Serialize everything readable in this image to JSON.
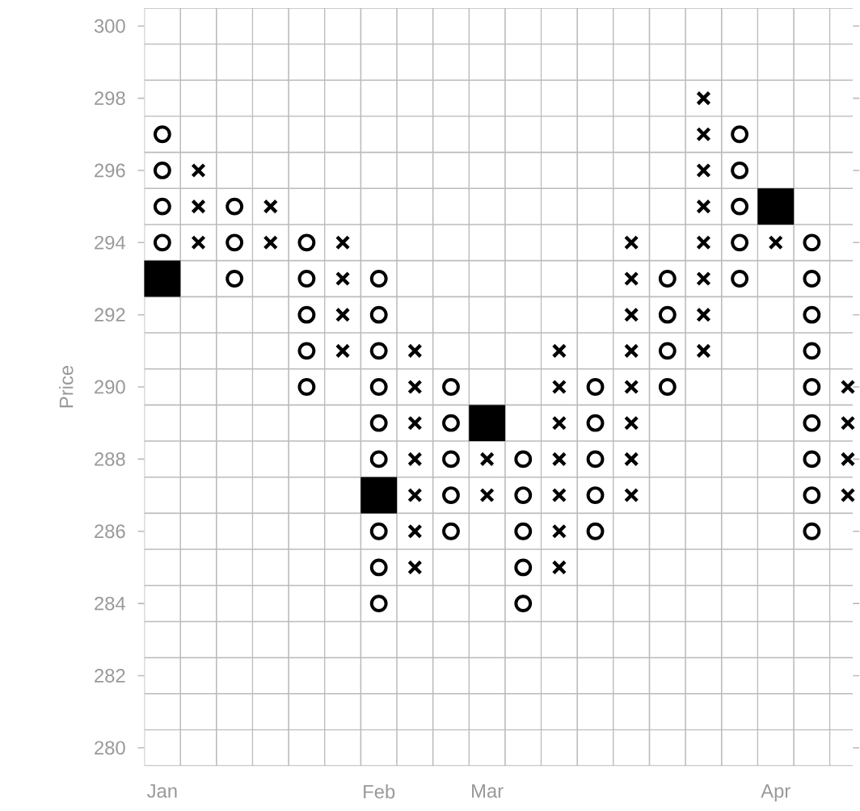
{
  "chart_data": {
    "type": "scatter",
    "ylabel": "Price",
    "ylim": [
      279.5,
      300.5
    ],
    "categories": [
      "Jan",
      null,
      null,
      null,
      null,
      null,
      "Feb",
      null,
      null,
      "Mar",
      null,
      null,
      null,
      null,
      null,
      null,
      null,
      "Apr",
      null,
      null
    ],
    "yticks": [
      280,
      282,
      284,
      286,
      288,
      290,
      292,
      294,
      296,
      298,
      300
    ],
    "grid": true,
    "series": [
      {
        "marker": "cross",
        "color": "#000000",
        "values": [
          null,
          294,
          null,
          294,
          null,
          291,
          null,
          285,
          null,
          287,
          null,
          285,
          null,
          287,
          null,
          291,
          null,
          294,
          null,
          287
        ]
      },
      {
        "marker": "cross",
        "color": "#000000",
        "values": [
          null,
          295,
          null,
          295,
          null,
          292,
          null,
          286,
          null,
          288,
          null,
          286,
          null,
          288,
          null,
          292,
          null,
          null,
          null,
          288
        ]
      },
      {
        "marker": "cross",
        "color": "#000000",
        "values": [
          null,
          296,
          null,
          null,
          null,
          293,
          null,
          287,
          null,
          null,
          null,
          287,
          null,
          289,
          null,
          293,
          null,
          null,
          null,
          289
        ]
      },
      {
        "marker": "cross",
        "color": "#000000",
        "values": [
          null,
          null,
          null,
          null,
          null,
          294,
          null,
          288,
          null,
          null,
          null,
          288,
          null,
          290,
          null,
          294,
          null,
          null,
          null,
          290
        ]
      },
      {
        "marker": "cross",
        "color": "#000000",
        "values": [
          null,
          null,
          null,
          null,
          null,
          null,
          null,
          289,
          null,
          null,
          null,
          289,
          null,
          291,
          null,
          295,
          null,
          null,
          null,
          null
        ]
      },
      {
        "marker": "cross",
        "color": "#000000",
        "values": [
          null,
          null,
          null,
          null,
          null,
          null,
          null,
          290,
          null,
          null,
          null,
          290,
          null,
          292,
          null,
          296,
          null,
          null,
          null,
          null
        ]
      },
      {
        "marker": "cross",
        "color": "#000000",
        "values": [
          null,
          null,
          null,
          null,
          null,
          null,
          null,
          291,
          null,
          null,
          null,
          291,
          null,
          293,
          null,
          297,
          null,
          null,
          null,
          null
        ]
      },
      {
        "marker": "cross",
        "color": "#000000",
        "values": [
          null,
          null,
          null,
          null,
          null,
          null,
          null,
          null,
          null,
          null,
          null,
          null,
          null,
          294,
          null,
          298,
          null,
          null,
          null,
          null
        ]
      },
      {
        "marker": "circle",
        "color": "#000000",
        "values": [
          294,
          null,
          293,
          null,
          290,
          null,
          284,
          null,
          286,
          null,
          284,
          null,
          286,
          null,
          290,
          null,
          293,
          null,
          286,
          null
        ]
      },
      {
        "marker": "circle",
        "color": "#000000",
        "values": [
          295,
          null,
          294,
          null,
          291,
          null,
          285,
          null,
          287,
          null,
          285,
          null,
          287,
          null,
          291,
          null,
          294,
          null,
          287,
          null
        ]
      },
      {
        "marker": "circle",
        "color": "#000000",
        "values": [
          296,
          null,
          295,
          null,
          292,
          null,
          286,
          null,
          288,
          null,
          286,
          null,
          288,
          null,
          292,
          null,
          295,
          null,
          288,
          null
        ]
      },
      {
        "marker": "circle",
        "color": "#000000",
        "values": [
          297,
          null,
          null,
          null,
          293,
          null,
          288,
          null,
          289,
          null,
          287,
          null,
          289,
          null,
          293,
          null,
          296,
          null,
          289,
          null
        ]
      },
      {
        "marker": "circle",
        "color": "#000000",
        "values": [
          null,
          null,
          null,
          null,
          294,
          null,
          289,
          null,
          290,
          null,
          288,
          null,
          290,
          null,
          null,
          null,
          297,
          null,
          290,
          null
        ]
      },
      {
        "marker": "circle",
        "color": "#000000",
        "values": [
          null,
          null,
          null,
          null,
          null,
          null,
          290,
          null,
          null,
          null,
          null,
          null,
          null,
          null,
          null,
          null,
          null,
          null,
          291,
          null
        ]
      },
      {
        "marker": "circle",
        "color": "#000000",
        "values": [
          null,
          null,
          null,
          null,
          null,
          null,
          291,
          null,
          null,
          null,
          null,
          null,
          null,
          null,
          null,
          null,
          null,
          null,
          292,
          null
        ]
      },
      {
        "marker": "circle",
        "color": "#000000",
        "values": [
          null,
          null,
          null,
          null,
          null,
          null,
          292,
          null,
          null,
          null,
          null,
          null,
          null,
          null,
          null,
          null,
          null,
          null,
          293,
          null
        ]
      },
      {
        "marker": "circle",
        "color": "#000000",
        "values": [
          null,
          null,
          null,
          null,
          null,
          null,
          293,
          null,
          null,
          null,
          null,
          null,
          null,
          null,
          null,
          null,
          null,
          null,
          294,
          null
        ]
      },
      {
        "marker": "square",
        "color": "#000000",
        "values": [
          293,
          null,
          null,
          null,
          null,
          null,
          287,
          null,
          null,
          289,
          null,
          null,
          null,
          null,
          null,
          null,
          null,
          295,
          null,
          null
        ]
      }
    ]
  }
}
